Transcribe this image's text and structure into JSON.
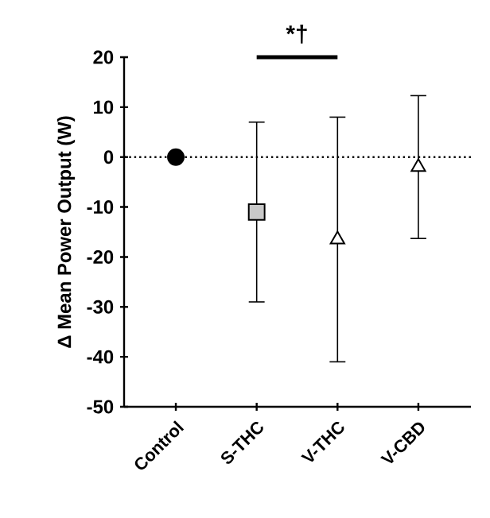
{
  "chart_data": {
    "type": "scatter",
    "ylabel": "Δ Mean Power Output (W)",
    "categories": [
      "Control",
      "S-THC",
      "V-THC",
      "V-CBD"
    ],
    "series": [
      {
        "color": "#000000",
        "marker": "circle",
        "values": [
          0,
          null,
          null,
          null
        ],
        "errors": [
          null,
          null,
          null,
          null
        ]
      },
      {
        "color": "#c8c8c8",
        "marker": "square",
        "values": [
          null,
          -11,
          null,
          null
        ],
        "errors": [
          null,
          18,
          null,
          null
        ]
      },
      {
        "color": "#ffffff",
        "marker": "triangle",
        "values": [
          null,
          null,
          -16.5,
          null
        ],
        "errors": [
          null,
          null,
          24.5,
          null
        ]
      },
      {
        "color": "#ffffff",
        "marker": "triangle",
        "values": [
          null,
          null,
          null,
          -2
        ],
        "errors": [
          null,
          null,
          null,
          14.3
        ]
      }
    ],
    "ylim": [
      -50,
      20
    ],
    "yticks": [
      -50,
      -40,
      -30,
      -20,
      -10,
      0,
      10,
      20
    ],
    "ref_lines": [
      {
        "axis": "y",
        "value": 0,
        "line_style": "dotted"
      }
    ],
    "annotations": [
      "*†"
    ],
    "grid": false
  }
}
